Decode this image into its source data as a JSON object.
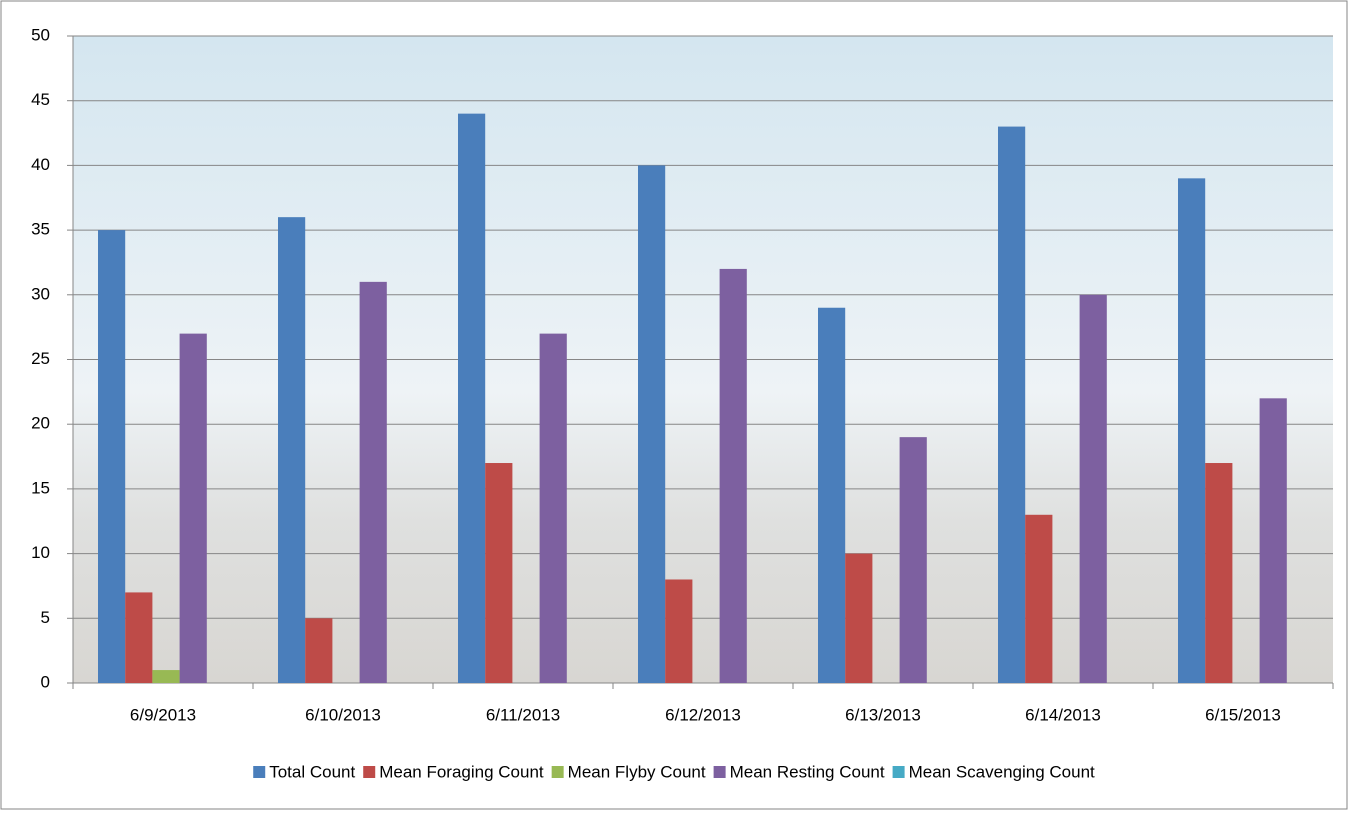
{
  "chart_data": {
    "type": "bar",
    "categories": [
      "6/9/2013",
      "6/10/2013",
      "6/11/2013",
      "6/12/2013",
      "6/13/2013",
      "6/14/2013",
      "6/15/2013"
    ],
    "series": [
      {
        "name": "Total Count",
        "color": "#4a7ebb",
        "values": [
          35,
          36,
          44,
          40,
          29,
          43,
          39
        ]
      },
      {
        "name": "Mean Foraging Count",
        "color": "#be4b48",
        "values": [
          7,
          5,
          17,
          8,
          10,
          13,
          17
        ]
      },
      {
        "name": "Mean Flyby Count",
        "color": "#98b954",
        "values": [
          1,
          0,
          0,
          0,
          0,
          0,
          0
        ]
      },
      {
        "name": "Mean Resting Count",
        "color": "#7d60a0",
        "values": [
          27,
          31,
          27,
          32,
          19,
          30,
          22
        ]
      },
      {
        "name": "Mean Scavenging Count",
        "color": "#46aac5",
        "values": [
          0,
          0,
          0,
          0,
          0,
          0,
          0
        ]
      }
    ],
    "ylim": [
      0,
      50
    ],
    "yticks": [
      0,
      5,
      10,
      15,
      20,
      25,
      30,
      35,
      40,
      45,
      50
    ],
    "grid": true,
    "legend": "bottom"
  }
}
